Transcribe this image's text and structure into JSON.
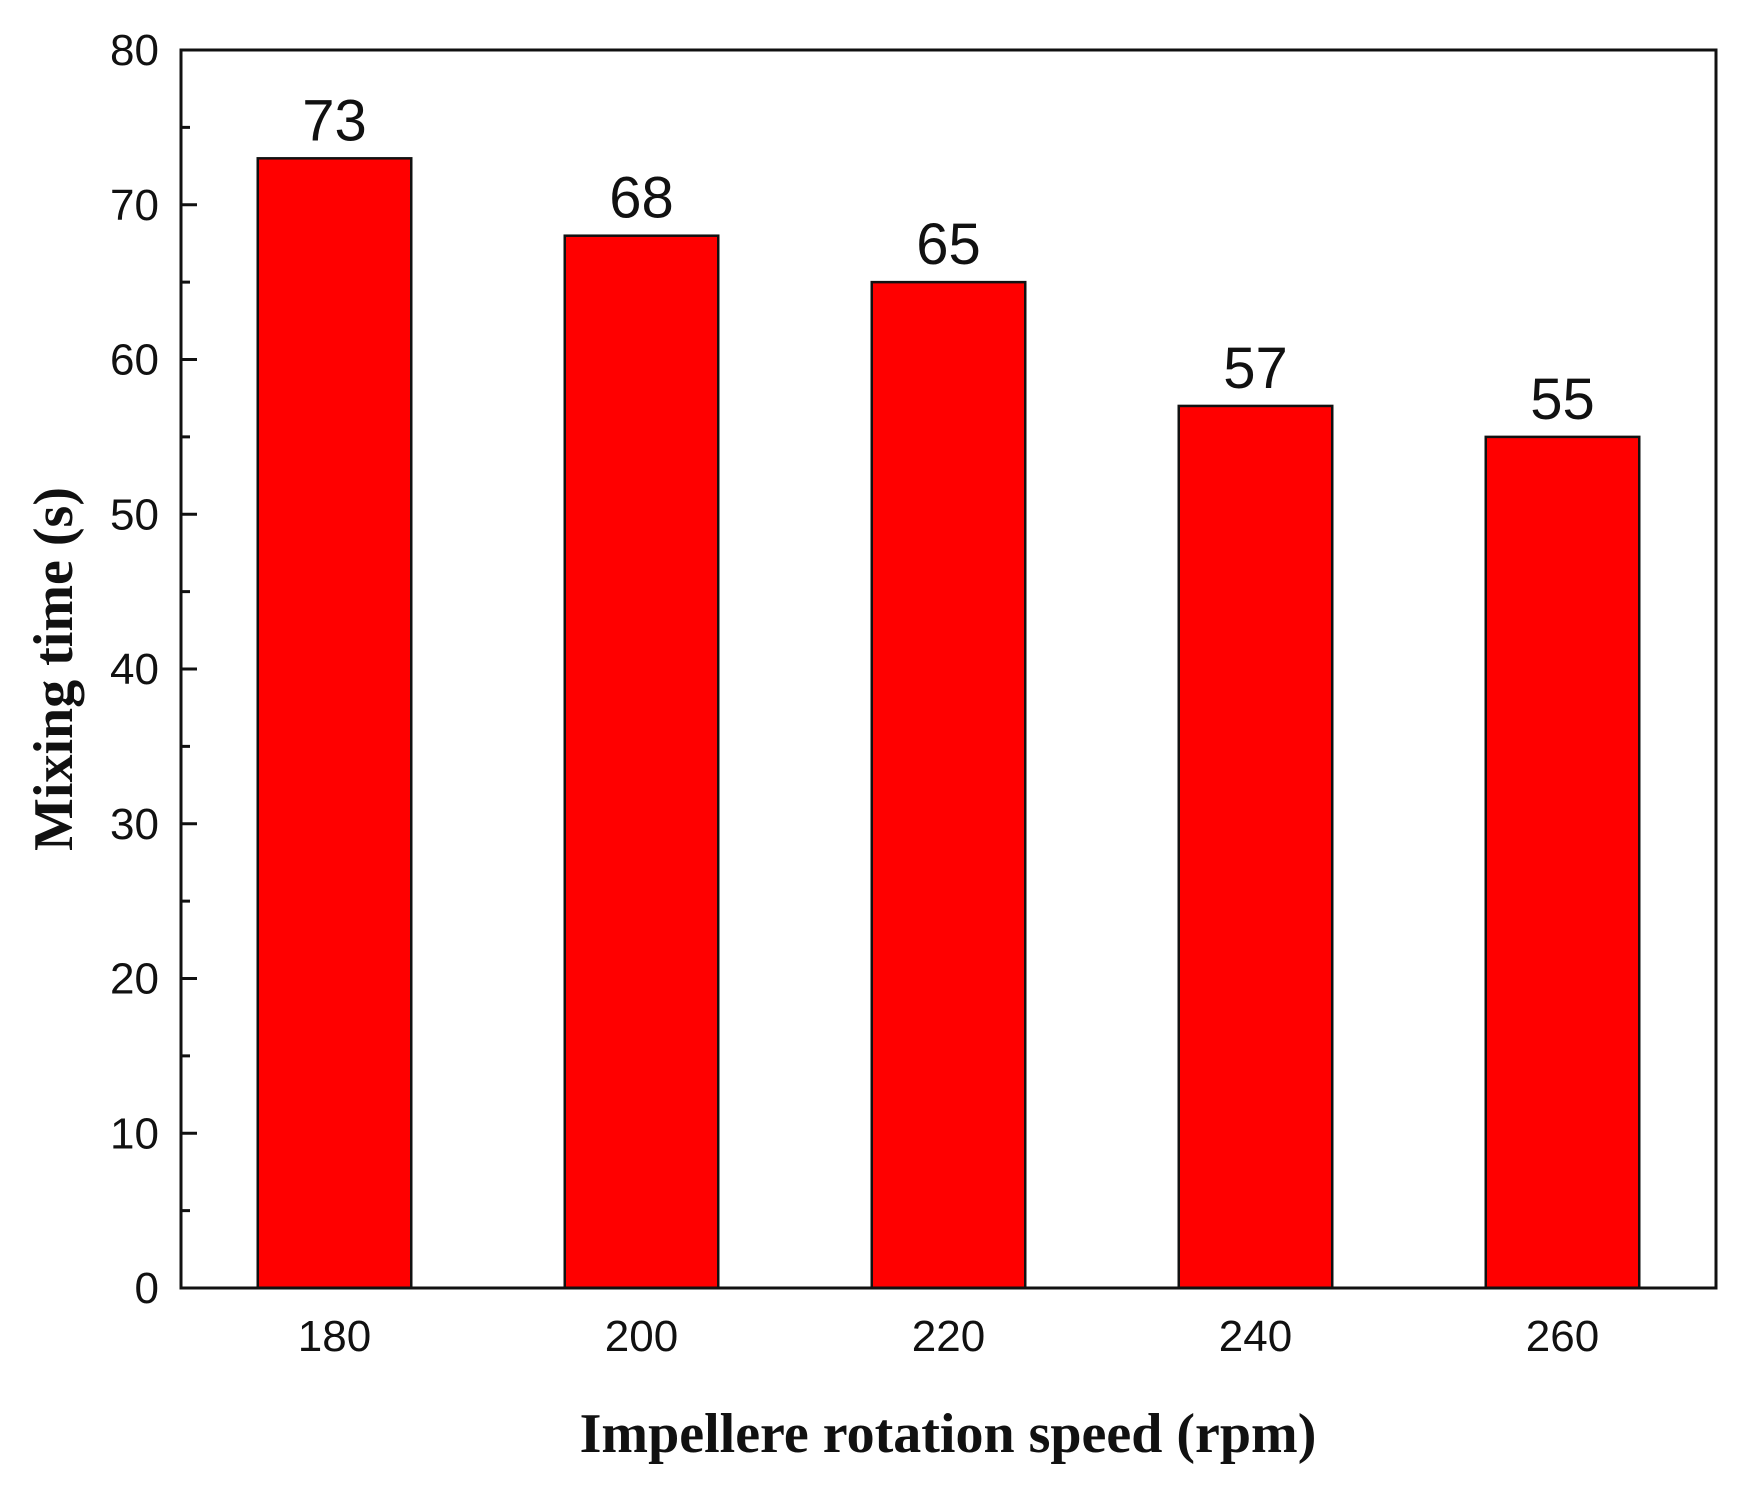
{
  "chart_data": {
    "type": "bar",
    "title": "",
    "xlabel": "Impellere rotation speed (rpm)",
    "ylabel": "Mixing time (s)",
    "categories": [
      "180",
      "200",
      "220",
      "240",
      "260"
    ],
    "values": [
      73,
      68,
      65,
      57,
      55
    ],
    "data_labels": [
      "73",
      "68",
      "65",
      "57",
      "55"
    ],
    "ylim": [
      0,
      80
    ],
    "yticks": [
      0,
      10,
      20,
      30,
      40,
      50,
      60,
      70,
      80
    ],
    "ytick_labels": [
      "0",
      "10",
      "20",
      "30",
      "40",
      "50",
      "60",
      "70",
      "80"
    ],
    "minor_ticks": true,
    "grid": false,
    "legend": "none",
    "bar_color": "#ff0000",
    "bar_edge_color": "#111111"
  }
}
